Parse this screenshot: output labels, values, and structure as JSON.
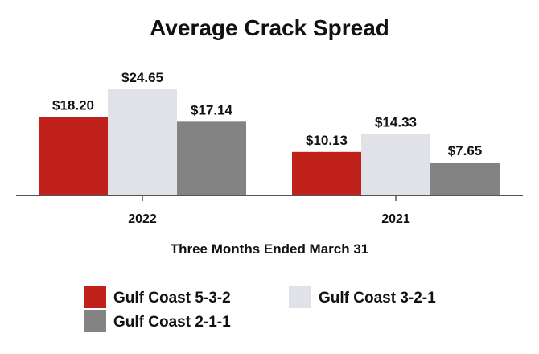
{
  "chart_data": {
    "type": "bar",
    "title": "Average Crack Spread",
    "xlabel": "Three Months Ended March 31",
    "ylabel": "",
    "categories": [
      "2022",
      "2021"
    ],
    "series": [
      {
        "name": "Gulf Coast 5-3-2",
        "color": "#c0211a",
        "values": [
          18.2,
          10.13
        ],
        "labels": [
          "$18.20",
          "$10.13"
        ]
      },
      {
        "name": "Gulf Coast 3-2-1",
        "color": "#e1e1e8",
        "values": [
          24.65,
          14.33
        ],
        "labels": [
          "$24.65",
          "$14.33"
        ]
      },
      {
        "name": "Gulf Coast 2-1-1",
        "color": "#838383",
        "values": [
          17.14,
          7.65
        ],
        "labels": [
          "$17.14",
          "$7.65"
        ]
      }
    ],
    "ylim": [
      0,
      25
    ],
    "grid": false,
    "legend_position": "bottom"
  }
}
